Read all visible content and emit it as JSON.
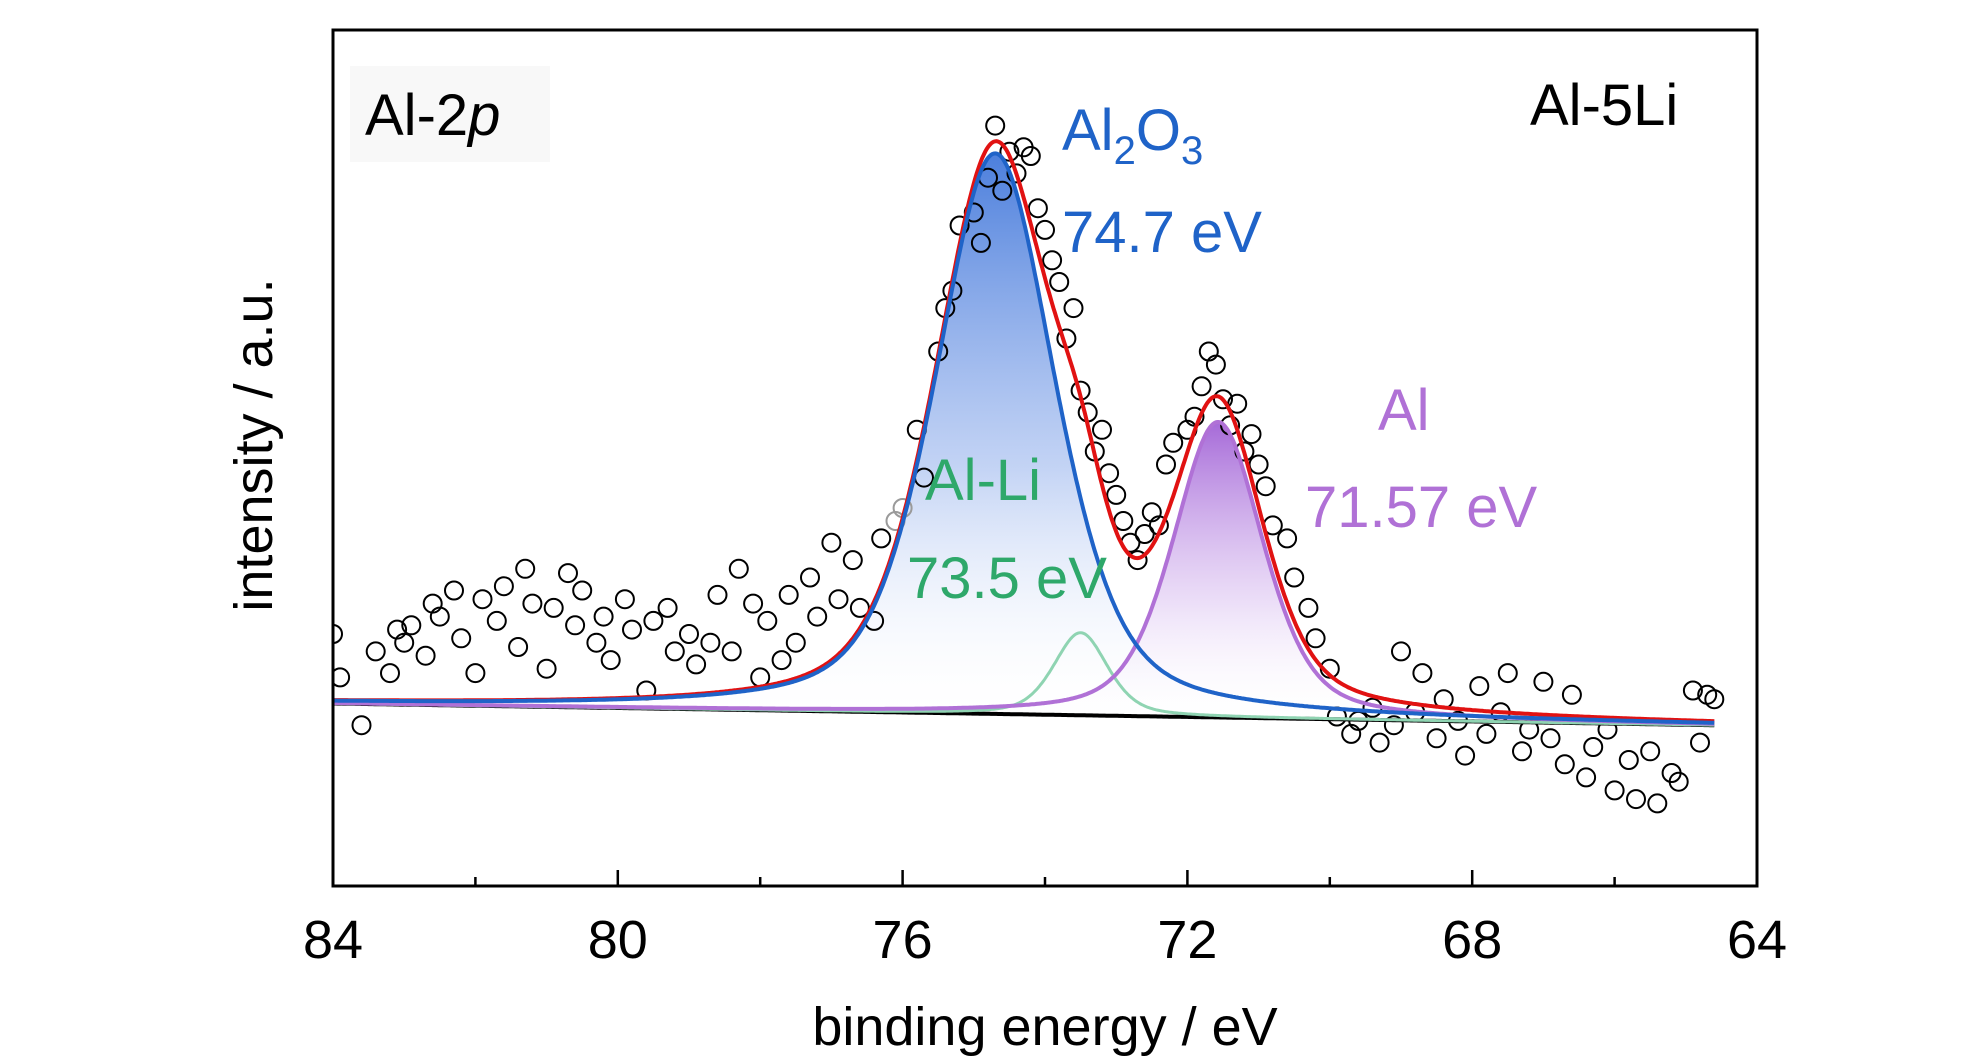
{
  "chart_data": {
    "type": "scatter",
    "xlabel": "binding energy / eV",
    "ylabel": "intensity / a.u.",
    "xlim": [
      84,
      64
    ],
    "x_reversed": true,
    "ylim": [
      -0.42,
      1.55
    ],
    "y_ticks_shown": false,
    "xticks": [
      84,
      80,
      76,
      72,
      68,
      64
    ],
    "xtick_labels": [
      "84",
      "80",
      "76",
      "72",
      "68",
      "64"
    ],
    "minor_xticks": [
      82,
      78,
      74,
      70,
      66
    ],
    "grid": false,
    "annotations": {
      "region": {
        "main": "Al-2",
        "italic": "p"
      },
      "sample": "Al-5Li",
      "al2o3": {
        "main": "Al",
        "sub1": "2",
        "mid": "O",
        "sub2": "3",
        "energy": "74.7 eV",
        "color": "#1f63c8"
      },
      "alli": {
        "name": "Al-Li",
        "energy": "73.5 eV",
        "color": "#2ea86a"
      },
      "al": {
        "name": "Al",
        "energy": "71.57 eV",
        "color": "#b071d6"
      }
    },
    "colors": {
      "envelope": "#e11212",
      "al2o3_fit": "#1f63c8",
      "al2o3_fill": "#4c7fdc",
      "alli_fit": "#8fd4b2",
      "al_fit": "#b071d6",
      "al_fill": "#a66ad8",
      "background": "#000000",
      "points": "#000000"
    },
    "series": [
      {
        "kind": "raw",
        "x": [
          84.0,
          83.9,
          83.6,
          83.4,
          83.2,
          83.1,
          83.0,
          82.9,
          82.7,
          82.6,
          82.5,
          82.3,
          82.2,
          82.0,
          81.9,
          81.7,
          81.6,
          81.4,
          81.3,
          81.2,
          81.0,
          80.9,
          80.7,
          80.6,
          80.5,
          80.3,
          80.2,
          80.1,
          79.9,
          79.8,
          79.6,
          79.5,
          79.3,
          79.2,
          79.0,
          78.9,
          78.7,
          78.6,
          78.4,
          78.3,
          78.1,
          78.0,
          77.9,
          77.7,
          77.6,
          77.5,
          77.3,
          77.2,
          77.0,
          76.9,
          76.7,
          76.6,
          76.4,
          76.3,
          76.1,
          76.0,
          75.8,
          75.7,
          75.5,
          75.4,
          75.3,
          75.2,
          75.0,
          74.9,
          74.8,
          74.7,
          74.6,
          74.5,
          74.4,
          74.3,
          74.2,
          74.1,
          74.0,
          73.9,
          73.8,
          73.7,
          73.6,
          73.5,
          73.4,
          73.3,
          73.2,
          73.1,
          73.0,
          72.9,
          72.8,
          72.7,
          72.6,
          72.5,
          72.4,
          72.3,
          72.2,
          72.0,
          71.9,
          71.8,
          71.7,
          71.6,
          71.5,
          71.4,
          71.3,
          71.2,
          71.1,
          71.0,
          70.9,
          70.8,
          70.6,
          70.5,
          70.3,
          70.2,
          70.0,
          69.9,
          69.7,
          69.6,
          69.4,
          69.3,
          69.1,
          69.0,
          68.8,
          68.7,
          68.5,
          68.4,
          68.2,
          68.1,
          67.9,
          67.8,
          67.6,
          67.5,
          67.3,
          67.2,
          67.0,
          66.9,
          66.7,
          66.6,
          66.4,
          66.3,
          66.1,
          66.0,
          65.8,
          65.7,
          65.5,
          65.4,
          65.2,
          65.1,
          64.9,
          64.8,
          64.7,
          64.6
        ],
        "y": [
          0.16,
          0.06,
          -0.05,
          0.12,
          0.07,
          0.17,
          0.14,
          0.18,
          0.11,
          0.23,
          0.2,
          0.26,
          0.15,
          0.07,
          0.24,
          0.19,
          0.27,
          0.13,
          0.31,
          0.23,
          0.08,
          0.22,
          0.3,
          0.18,
          0.26,
          0.14,
          0.2,
          0.1,
          0.24,
          0.17,
          0.03,
          0.19,
          0.22,
          0.12,
          0.16,
          0.09,
          0.14,
          0.25,
          0.12,
          0.31,
          0.23,
          0.06,
          0.19,
          0.1,
          0.25,
          0.14,
          0.29,
          0.2,
          0.37,
          0.24,
          0.33,
          0.22,
          0.19,
          0.38,
          0.42,
          0.45,
          0.63,
          0.52,
          0.81,
          0.91,
          0.95,
          1.1,
          1.13,
          1.06,
          1.21,
          1.33,
          1.18,
          1.27,
          1.22,
          1.28,
          1.26,
          1.14,
          1.09,
          1.02,
          0.97,
          0.84,
          0.91,
          0.72,
          0.67,
          0.58,
          0.63,
          0.53,
          0.48,
          0.42,
          0.37,
          0.33,
          0.39,
          0.44,
          0.41,
          0.55,
          0.6,
          0.63,
          0.66,
          0.73,
          0.81,
          0.78,
          0.7,
          0.64,
          0.69,
          0.58,
          0.62,
          0.55,
          0.5,
          0.41,
          0.38,
          0.29,
          0.22,
          0.15,
          0.08,
          -0.03,
          -0.07,
          -0.04,
          -0.01,
          -0.09,
          -0.05,
          0.12,
          -0.02,
          0.07,
          -0.08,
          0.01,
          -0.04,
          -0.12,
          0.04,
          -0.07,
          -0.02,
          0.07,
          -0.11,
          -0.06,
          0.05,
          -0.08,
          -0.14,
          0.02,
          -0.17,
          -0.1,
          -0.06,
          -0.2,
          -0.13,
          -0.22,
          -0.11,
          -0.23,
          -0.16,
          -0.18,
          0.03,
          -0.09,
          0.02,
          0.01
        ]
      },
      {
        "kind": "peak",
        "name": "Al2O3",
        "center": 74.7,
        "amplitude": 1.29,
        "fwhm": 2.0
      },
      {
        "kind": "peak",
        "name": "Al-Li",
        "center": 73.5,
        "amplitude": 0.19,
        "fwhm": 0.9
      },
      {
        "kind": "peak",
        "name": "Al",
        "center": 71.57,
        "amplitude": 0.68,
        "fwhm": 1.5
      },
      {
        "kind": "background",
        "x": [
          84,
          64.6
        ],
        "y": [
          0.0,
          -0.05
        ]
      },
      {
        "kind": "envelope",
        "name": "sum of fitted peaks"
      }
    ]
  }
}
